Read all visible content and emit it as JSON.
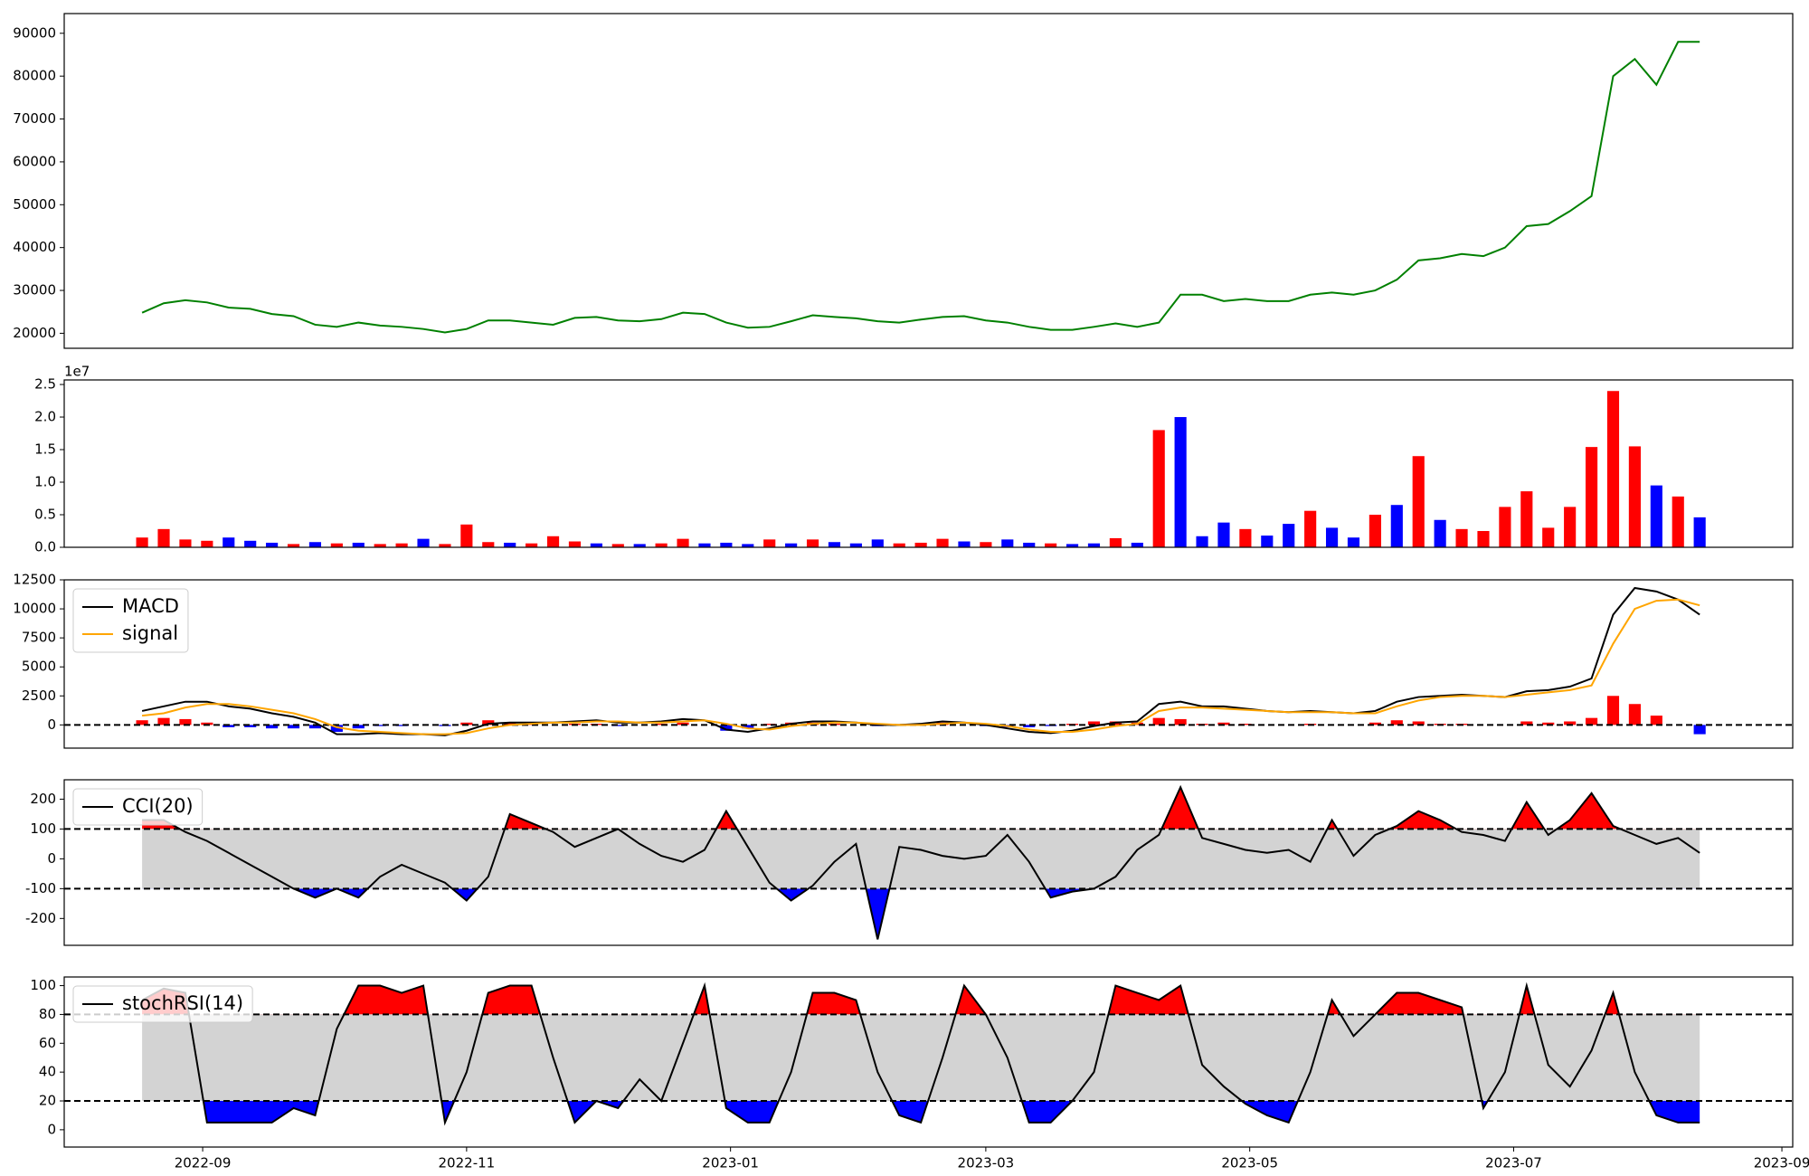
{
  "chart_data": [
    {
      "type": "line",
      "xlim": [
        -3.6,
        76.3
      ],
      "ylim": [
        16500,
        94600
      ],
      "yticks": [
        20000,
        30000,
        40000,
        50000,
        60000,
        70000,
        80000,
        90000
      ],
      "series": [
        {
          "color": "green",
          "values": [
            24800,
            27000,
            27700,
            27200,
            26000,
            25700,
            24500,
            24000,
            22000,
            21500,
            22500,
            21800,
            21500,
            21000,
            20200,
            21000,
            23000,
            23000,
            22500,
            22000,
            23600,
            23800,
            23000,
            22800,
            23300,
            24800,
            24500,
            22500,
            21300,
            21500,
            22800,
            24200,
            23800,
            23500,
            22800,
            22500,
            23200,
            23800,
            24000,
            23000,
            22500,
            21500,
            20800,
            20800,
            21500,
            22300,
            21500,
            22500,
            29000,
            29000,
            27500,
            28000,
            27500,
            27500,
            29000,
            29500,
            29000,
            30000,
            32500,
            37000,
            37500,
            38500,
            38000,
            40000,
            45000,
            45500,
            48500,
            52000,
            80000,
            84000,
            78000,
            88000,
            88000
          ]
        }
      ]
    },
    {
      "type": "bar",
      "xlim": [
        -3.6,
        76.3
      ],
      "ylim": [
        0,
        25700000
      ],
      "y_offset_label": "1e7",
      "yticks": [
        {
          "value": 0,
          "label": "0.0"
        },
        {
          "value": 5000000,
          "label": "0.5"
        },
        {
          "value": 10000000,
          "label": "1.0"
        },
        {
          "value": 15000000,
          "label": "1.5"
        },
        {
          "value": 20000000,
          "label": "2.0"
        },
        {
          "value": 25000000,
          "label": "2.5"
        }
      ],
      "values": [
        1500000,
        2800000,
        1200000,
        1000000,
        1500000,
        1000000,
        700000,
        500000,
        800000,
        600000,
        700000,
        500000,
        600000,
        1300000,
        500000,
        3500000,
        800000,
        700000,
        600000,
        1700000,
        900000,
        600000,
        500000,
        500000,
        600000,
        1300000,
        600000,
        700000,
        500000,
        1200000,
        600000,
        1200000,
        800000,
        600000,
        1200000,
        600000,
        700000,
        1300000,
        900000,
        800000,
        1200000,
        700000,
        600000,
        500000,
        600000,
        1400000,
        700000,
        18000000,
        20000000,
        1700000,
        3800000,
        2800000,
        1800000,
        3600000,
        5600000,
        3000000,
        1500000,
        5000000,
        6500000,
        14000000,
        4200000,
        2800000,
        2500000,
        6200000,
        8600000,
        3000000,
        6200000,
        15400000,
        24000000,
        15500000,
        9500000,
        7800000,
        4600000
      ],
      "colors": [
        "red",
        "red",
        "red",
        "red",
        "blue",
        "blue",
        "blue",
        "red",
        "blue",
        "red",
        "blue",
        "red",
        "red",
        "blue",
        "red",
        "red",
        "red",
        "blue",
        "red",
        "red",
        "red",
        "blue",
        "red",
        "blue",
        "red",
        "red",
        "blue",
        "blue",
        "blue",
        "red",
        "blue",
        "red",
        "blue",
        "blue",
        "blue",
        "red",
        "red",
        "red",
        "blue",
        "red",
        "blue",
        "blue",
        "red",
        "blue",
        "blue",
        "red",
        "blue",
        "red",
        "blue",
        "blue",
        "blue",
        "red",
        "blue",
        "blue",
        "red",
        "blue",
        "blue",
        "red",
        "blue",
        "red",
        "blue",
        "red",
        "red",
        "red",
        "red",
        "red",
        "red",
        "red",
        "red",
        "red",
        "blue",
        "red",
        "blue"
      ]
    },
    {
      "type": "line",
      "xlim": [
        -3.6,
        76.3
      ],
      "ylim": [
        -2000,
        12500
      ],
      "legend": "upper left",
      "yticks": [
        0,
        2500,
        5000,
        7500,
        10000,
        12500
      ],
      "hlines": [
        0
      ],
      "series": [
        {
          "name": "MACD",
          "color": "black",
          "values": [
            1200,
            1600,
            2000,
            2000,
            1600,
            1400,
            1000,
            700,
            200,
            -800,
            -800,
            -700,
            -800,
            -800,
            -900,
            -500,
            100,
            200,
            200,
            200,
            300,
            400,
            200,
            200,
            300,
            500,
            400,
            -400,
            -600,
            -300,
            100,
            300,
            300,
            200,
            0,
            0,
            100,
            300,
            200,
            0,
            -300,
            -600,
            -700,
            -500,
            -100,
            200,
            300,
            1800,
            2000,
            1600,
            1600,
            1400,
            1200,
            1100,
            1200,
            1100,
            1000,
            1200,
            2000,
            2400,
            2500,
            2600,
            2500,
            2400,
            2900,
            3000,
            3300,
            4000,
            9500,
            11800,
            11500,
            10800,
            9500
          ]
        },
        {
          "name": "signal",
          "color": "orange",
          "values": [
            800,
            1000,
            1500,
            1800,
            1800,
            1600,
            1300,
            1000,
            500,
            -200,
            -500,
            -600,
            -700,
            -800,
            -800,
            -700,
            -300,
            0,
            100,
            200,
            200,
            300,
            300,
            200,
            200,
            300,
            400,
            100,
            -300,
            -400,
            -100,
            100,
            200,
            200,
            100,
            0,
            0,
            100,
            200,
            100,
            -100,
            -400,
            -600,
            -600,
            -400,
            -100,
            100,
            1200,
            1500,
            1500,
            1400,
            1300,
            1200,
            1100,
            1100,
            1100,
            1000,
            1000,
            1600,
            2100,
            2400,
            2500,
            2500,
            2400,
            2600,
            2800,
            3000,
            3400,
            7000,
            10000,
            10700,
            10800,
            10300
          ]
        }
      ],
      "histogram": {
        "pos_color": "red",
        "neg_color": "blue",
        "values": [
          400,
          600,
          500,
          200,
          -200,
          -200,
          -300,
          -300,
          -300,
          -600,
          -300,
          -100,
          -100,
          0,
          -100,
          200,
          400,
          200,
          100,
          0,
          100,
          100,
          -100,
          0,
          100,
          200,
          0,
          -500,
          -300,
          100,
          200,
          200,
          100,
          0,
          -100,
          0,
          100,
          200,
          0,
          -100,
          -200,
          -200,
          -100,
          100,
          300,
          300,
          200,
          600,
          500,
          100,
          200,
          100,
          0,
          0,
          100,
          0,
          0,
          200,
          400,
          300,
          100,
          100,
          0,
          0,
          300,
          200,
          300,
          600,
          2500,
          1800,
          800,
          0,
          -800
        ]
      }
    },
    {
      "type": "line",
      "xlim": [
        -3.6,
        76.3
      ],
      "ylim": [
        -290,
        265
      ],
      "legend": "upper left",
      "yticks": [
        -200,
        -100,
        0,
        100,
        200
      ],
      "band": {
        "low": -100,
        "high": 100,
        "color": "lightgray",
        "above_color": "red",
        "below_color": "blue"
      },
      "series": [
        {
          "name": "CCI(20)",
          "color": "black",
          "values": [
            130,
            130,
            90,
            60,
            20,
            -20,
            -60,
            -100,
            -130,
            -100,
            -130,
            -60,
            -20,
            -50,
            -80,
            -140,
            -60,
            150,
            120,
            90,
            40,
            70,
            100,
            50,
            10,
            -10,
            30,
            160,
            40,
            -80,
            -140,
            -90,
            -10,
            50,
            -270,
            40,
            30,
            10,
            0,
            10,
            80,
            -10,
            -130,
            -110,
            -100,
            -60,
            30,
            80,
            240,
            70,
            50,
            30,
            20,
            30,
            -10,
            130,
            10,
            80,
            110,
            160,
            130,
            90,
            80,
            60,
            190,
            80,
            130,
            220,
            110,
            80,
            50,
            70,
            20
          ]
        }
      ]
    },
    {
      "type": "line",
      "xlim": [
        -3.6,
        76.3
      ],
      "ylim": [
        -12,
        106
      ],
      "legend": "upper left",
      "yticks": [
        0,
        20,
        40,
        60,
        80,
        100
      ],
      "band": {
        "low": 20,
        "high": 80,
        "color": "lightgray",
        "above_color": "red",
        "below_color": "blue"
      },
      "xticks": [
        {
          "value": 2.8,
          "label": "2022-09"
        },
        {
          "value": 15,
          "label": "2022-11"
        },
        {
          "value": 27.2,
          "label": "2023-01"
        },
        {
          "value": 39,
          "label": "2023-03"
        },
        {
          "value": 51.2,
          "label": "2023-05"
        },
        {
          "value": 63.4,
          "label": "2023-07"
        },
        {
          "value": 75.8,
          "label": "2023-09"
        }
      ],
      "series": [
        {
          "name": "stochRSI(14)",
          "color": "black",
          "values": [
            90,
            98,
            95,
            5,
            5,
            5,
            5,
            15,
            10,
            70,
            100,
            100,
            95,
            100,
            5,
            40,
            95,
            100,
            100,
            50,
            5,
            20,
            15,
            35,
            20,
            60,
            100,
            15,
            5,
            5,
            40,
            95,
            95,
            90,
            40,
            10,
            5,
            50,
            100,
            80,
            50,
            5,
            5,
            20,
            40,
            100,
            95,
            90,
            100,
            45,
            30,
            18,
            10,
            5,
            40,
            90,
            65,
            80,
            95,
            95,
            90,
            85,
            15,
            40,
            100,
            45,
            30,
            55,
            95,
            40,
            10,
            5,
            5
          ]
        }
      ]
    }
  ]
}
